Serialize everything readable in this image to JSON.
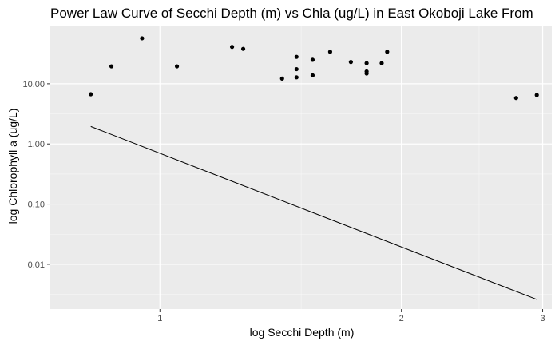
{
  "chart_data": {
    "type": "scatter",
    "title": "Power Law Curve of Secchi Depth (m) vs Chla (ug/L) in East Okoboji Lake From",
    "xlabel": "log Secchi Depth (m)",
    "ylabel": "log Chlorophyll a (ug/L)",
    "x_scale": "log10",
    "y_scale": "log10",
    "xlim": [
      0.73,
      3.08
    ],
    "ylim": [
      0.0018,
      90
    ],
    "x_ticks": [
      {
        "value": 1,
        "label": "1"
      },
      {
        "value": 2,
        "label": "2"
      },
      {
        "value": 3,
        "label": "3"
      }
    ],
    "y_ticks": [
      {
        "value": 0.01,
        "label": "0.01"
      },
      {
        "value": 0.1,
        "label": "0.10"
      },
      {
        "value": 1,
        "label": "1.00"
      },
      {
        "value": 10,
        "label": "10.00"
      }
    ],
    "x_minor_ticks": [
      1.5,
      2.5
    ],
    "y_minor_ticks": [
      0.00316,
      0.0316,
      0.316,
      3.16,
      31.6
    ],
    "grid": true,
    "background": "#ebebeb",
    "points": [
      {
        "x": 0.82,
        "y": 6.7
      },
      {
        "x": 0.87,
        "y": 19.5
      },
      {
        "x": 0.95,
        "y": 57
      },
      {
        "x": 1.05,
        "y": 19.5
      },
      {
        "x": 1.23,
        "y": 41
      },
      {
        "x": 1.27,
        "y": 38
      },
      {
        "x": 1.42,
        "y": 12.2
      },
      {
        "x": 1.48,
        "y": 12.8
      },
      {
        "x": 1.48,
        "y": 17.5
      },
      {
        "x": 1.48,
        "y": 28
      },
      {
        "x": 1.55,
        "y": 13.8
      },
      {
        "x": 1.55,
        "y": 25
      },
      {
        "x": 1.63,
        "y": 34
      },
      {
        "x": 1.73,
        "y": 23
      },
      {
        "x": 1.81,
        "y": 22
      },
      {
        "x": 1.81,
        "y": 16
      },
      {
        "x": 1.81,
        "y": 14.8
      },
      {
        "x": 1.89,
        "y": 22
      },
      {
        "x": 1.92,
        "y": 34
      },
      {
        "x": 2.78,
        "y": 5.8
      },
      {
        "x": 2.95,
        "y": 6.5
      }
    ],
    "fit_line": [
      {
        "x": 0.82,
        "y": 1.95
      },
      {
        "x": 2.95,
        "y": 0.0026
      }
    ]
  }
}
